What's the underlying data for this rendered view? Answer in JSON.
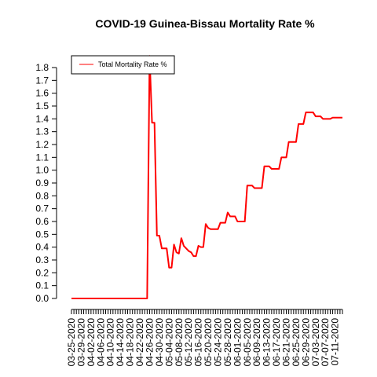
{
  "chart_data": {
    "type": "line",
    "title": "COVID-19 Guinea-Bissau Mortality Rate %",
    "xlabel": "",
    "ylabel": "",
    "ylim": [
      0,
      1.8
    ],
    "yticks": [
      "0.0",
      "0.1",
      "0.2",
      "0.3",
      "0.4",
      "0.5",
      "0.6",
      "0.7",
      "0.8",
      "0.9",
      "1.0",
      "1.1",
      "1.2",
      "1.3",
      "1.4",
      "1.5",
      "1.6",
      "1.7",
      "1.8"
    ],
    "xtick_labels": [
      "03-25-2020",
      "03-29-2020",
      "04-02-2020",
      "04-06-2020",
      "04-10-2020",
      "04-14-2020",
      "04-18-2020",
      "04-22-2020",
      "04-26-2020",
      "04-30-2020",
      "05-04-2020",
      "05-08-2020",
      "05-12-2020",
      "05-16-2020",
      "05-20-2020",
      "05-24-2020",
      "05-28-2020",
      "06-01-2020",
      "06-05-2020",
      "06-09-2020",
      "06-13-2020",
      "06-17-2020",
      "06-21-2020",
      "06-25-2020",
      "06-29-2020",
      "07-03-2020",
      "07-07-2020",
      "07-11-2020"
    ],
    "legend": {
      "position": "top-left",
      "entries": [
        "Total Mortality Rate %"
      ]
    },
    "grid": false,
    "series": [
      {
        "name": "Total Mortality Rate %",
        "color": "#ff0000",
        "x": [
          "03-25-2020",
          "03-26-2020",
          "03-27-2020",
          "03-28-2020",
          "03-29-2020",
          "03-30-2020",
          "03-31-2020",
          "04-01-2020",
          "04-02-2020",
          "04-03-2020",
          "04-04-2020",
          "04-05-2020",
          "04-06-2020",
          "04-07-2020",
          "04-08-2020",
          "04-09-2020",
          "04-10-2020",
          "04-11-2020",
          "04-12-2020",
          "04-13-2020",
          "04-14-2020",
          "04-15-2020",
          "04-16-2020",
          "04-17-2020",
          "04-18-2020",
          "04-19-2020",
          "04-20-2020",
          "04-21-2020",
          "04-22-2020",
          "04-23-2020",
          "04-24-2020",
          "04-25-2020",
          "04-26-2020",
          "04-27-2020",
          "04-28-2020",
          "04-29-2020",
          "04-30-2020",
          "05-01-2020",
          "05-02-2020",
          "05-03-2020",
          "05-04-2020",
          "05-05-2020",
          "05-06-2020",
          "05-07-2020",
          "05-08-2020",
          "05-09-2020",
          "05-10-2020",
          "05-11-2020",
          "05-12-2020",
          "05-13-2020",
          "05-14-2020",
          "05-15-2020",
          "05-16-2020",
          "05-17-2020",
          "05-18-2020",
          "05-19-2020",
          "05-20-2020",
          "05-21-2020",
          "05-22-2020",
          "05-23-2020",
          "05-24-2020",
          "05-25-2020",
          "05-26-2020",
          "05-27-2020",
          "05-28-2020",
          "05-29-2020",
          "05-30-2020",
          "05-31-2020",
          "06-01-2020",
          "06-02-2020",
          "06-03-2020",
          "06-04-2020",
          "06-05-2020",
          "06-06-2020",
          "06-07-2020",
          "06-08-2020",
          "06-09-2020",
          "06-10-2020",
          "06-11-2020",
          "06-12-2020",
          "06-13-2020",
          "06-14-2020",
          "06-15-2020",
          "06-16-2020",
          "06-17-2020",
          "06-18-2020",
          "06-19-2020",
          "06-20-2020",
          "06-21-2020",
          "06-22-2020",
          "06-23-2020",
          "06-24-2020",
          "06-25-2020",
          "06-26-2020",
          "06-27-2020",
          "06-28-2020",
          "06-29-2020",
          "06-30-2020",
          "07-01-2020",
          "07-02-2020",
          "07-03-2020",
          "07-04-2020",
          "07-05-2020",
          "07-06-2020",
          "07-07-2020",
          "07-08-2020",
          "07-09-2020",
          "07-10-2020",
          "07-11-2020",
          "07-12-2020",
          "07-13-2020",
          "07-14-2020"
        ],
        "values": [
          0,
          0,
          0,
          0,
          0,
          0,
          0,
          0,
          0,
          0,
          0,
          0,
          0,
          0,
          0,
          0,
          0,
          0,
          0,
          0,
          0,
          0,
          0,
          0,
          0,
          0,
          0,
          0,
          0,
          0,
          0,
          0,
          1.89,
          1.37,
          1.37,
          0.49,
          0.49,
          0.39,
          0.39,
          0.39,
          0.24,
          0.24,
          0.42,
          0.36,
          0.35,
          0.47,
          0.41,
          0.39,
          0.37,
          0.36,
          0.33,
          0.33,
          0.41,
          0.4,
          0.4,
          0.58,
          0.55,
          0.54,
          0.54,
          0.54,
          0.54,
          0.59,
          0.59,
          0.59,
          0.67,
          0.64,
          0.64,
          0.64,
          0.6,
          0.6,
          0.6,
          0.6,
          0.88,
          0.88,
          0.88,
          0.86,
          0.86,
          0.86,
          0.86,
          1.03,
          1.03,
          1.03,
          1.01,
          1.01,
          1.01,
          1.01,
          1.1,
          1.1,
          1.1,
          1.22,
          1.22,
          1.22,
          1.22,
          1.36,
          1.36,
          1.36,
          1.45,
          1.45,
          1.45,
          1.45,
          1.42,
          1.42,
          1.42,
          1.4,
          1.4,
          1.4,
          1.4,
          1.41,
          1.41,
          1.41,
          1.41,
          1.41
        ]
      }
    ]
  }
}
